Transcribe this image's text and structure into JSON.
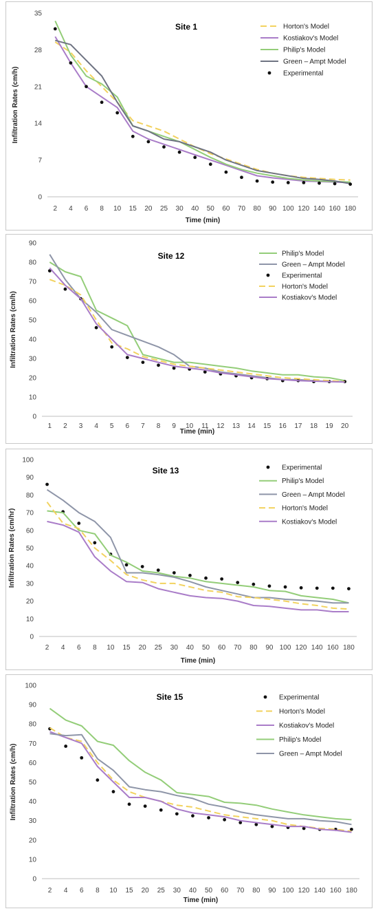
{
  "colors": {
    "horton": "#f2d25e",
    "kostiakov": "#a97cc8",
    "philip": "#93cd78",
    "green_ampt": "#6e7382",
    "experimental": "#111111",
    "green_ampt_light": "#8e95a8"
  },
  "chart_data": [
    {
      "type": "line",
      "title": "Site 1",
      "xlabel": "Time (min)",
      "ylabel": "Infiltration Rates (cm/h)",
      "categories": [
        "2",
        "4",
        "6",
        "8",
        "10",
        "15",
        "20",
        "25",
        "30",
        "40",
        "50",
        "60",
        "70",
        "80",
        "90",
        "100",
        "120",
        "140",
        "160",
        "180"
      ],
      "ylim": [
        0,
        35
      ],
      "yticks": [
        "0",
        "7",
        "14",
        "21",
        "28",
        "35"
      ],
      "grid": false,
      "legend_position": "top-right",
      "series": [
        {
          "name": "Horton's Model",
          "key": "horton",
          "style": "dashed",
          "values": [
            29.5,
            27.5,
            24,
            21,
            18,
            14.5,
            13.5,
            12.5,
            11,
            9.5,
            8.2,
            7.2,
            6.2,
            5.2,
            4.5,
            4,
            3.7,
            3.5,
            3.3,
            3.2
          ]
        },
        {
          "name": "Kostiakov's Model",
          "key": "kostiakov",
          "style": "solid",
          "values": [
            30.5,
            25.5,
            21,
            19,
            17,
            12.5,
            11,
            10,
            9,
            8,
            7,
            6,
            5,
            4,
            3.6,
            3.3,
            3,
            2.9,
            2.8,
            2.7
          ]
        },
        {
          "name": "Philip's Model",
          "key": "philip",
          "style": "solid",
          "values": [
            33.5,
            27,
            23,
            21.5,
            19,
            13.5,
            12.5,
            11.5,
            10.5,
            9,
            7.5,
            6.2,
            5.2,
            4.5,
            4,
            3.5,
            3.2,
            3,
            2.9,
            2.8
          ]
        },
        {
          "name": "Green – Ampt Model",
          "key": "green_ampt",
          "style": "solid",
          "values": [
            29.8,
            29,
            26,
            23,
            18,
            13.5,
            12.5,
            11,
            10.5,
            9.5,
            8.5,
            7,
            6,
            5,
            4.5,
            4,
            3.5,
            3.3,
            3,
            2.5
          ]
        },
        {
          "name": "Experimental",
          "key": "experimental",
          "style": "points",
          "values": [
            32,
            25.5,
            21,
            18,
            16,
            11.5,
            10.5,
            9.5,
            8.5,
            7.5,
            6.2,
            4.7,
            3.7,
            3,
            2.8,
            2.7,
            2.7,
            2.6,
            2.5,
            2.4
          ]
        }
      ]
    },
    {
      "type": "line",
      "title": "Site 12",
      "xlabel": "Time (min)",
      "ylabel": "Infiltration Rates (cm/h)",
      "categories": [
        "1",
        "2",
        "3",
        "4",
        "5",
        "6",
        "7",
        "8",
        "9",
        "10",
        "11",
        "12",
        "13",
        "14",
        "15",
        "16",
        "17",
        "18",
        "19",
        "20"
      ],
      "ylim": [
        0,
        90
      ],
      "yticks": [
        "0",
        "10",
        "20",
        "30",
        "40",
        "50",
        "60",
        "70",
        "80",
        "90"
      ],
      "grid": false,
      "legend_position": "top-right",
      "series": [
        {
          "name": "Philip's Model",
          "key": "philip",
          "style": "solid",
          "values": [
            80,
            75,
            72.5,
            55,
            51,
            47,
            32,
            30,
            28,
            28,
            27,
            26,
            25,
            23.5,
            22.5,
            21.5,
            21.5,
            20.5,
            20,
            18.5
          ]
        },
        {
          "name": "Green – Ampt Model",
          "key": "green_ampt_light",
          "style": "solid",
          "values": [
            84,
            71,
            61,
            54,
            45,
            42,
            39,
            36,
            32,
            26,
            25,
            23,
            22,
            21,
            20,
            19,
            19,
            18.5,
            18,
            18
          ]
        },
        {
          "name": "Experimental",
          "key": "experimental",
          "style": "points",
          "values": [
            75.5,
            66,
            61,
            46,
            36,
            30.5,
            28,
            26.5,
            25,
            24.5,
            23,
            22,
            21,
            20,
            19.5,
            18.5,
            18.5,
            18,
            18,
            18
          ]
        },
        {
          "name": "Horton's Model",
          "key": "horton",
          "style": "dashed",
          "values": [
            71,
            68,
            63,
            50,
            38,
            35,
            31,
            29,
            27,
            26,
            25,
            24,
            23,
            22,
            21,
            20,
            19.5,
            19,
            18.5,
            18
          ]
        },
        {
          "name": "Kostiakov's Model",
          "key": "kostiakov",
          "style": "solid",
          "values": [
            77,
            68,
            61,
            48,
            40,
            32,
            30,
            28,
            26,
            25,
            24,
            22.5,
            21.5,
            20.5,
            19.5,
            19,
            18.5,
            18.2,
            18,
            17.8
          ]
        }
      ]
    },
    {
      "type": "line",
      "title": "Site 13",
      "xlabel": "Time (min)",
      "ylabel": "Infiltration Rates (cm/hr)",
      "categories": [
        "2",
        "4",
        "6",
        "8",
        "10",
        "15",
        "20",
        "25",
        "30",
        "40",
        "50",
        "60",
        "70",
        "80",
        "90",
        "100",
        "120",
        "140",
        "160",
        "180"
      ],
      "ylim": [
        0,
        100
      ],
      "yticks": [
        "0",
        "10",
        "20",
        "30",
        "40",
        "50",
        "60",
        "70",
        "80",
        "90",
        "100"
      ],
      "grid": false,
      "legend_position": "top-right",
      "series": [
        {
          "name": "Experimental",
          "key": "experimental",
          "style": "points",
          "values": [
            86,
            70.5,
            64,
            53,
            46.5,
            40.5,
            39.5,
            37.5,
            36,
            34.5,
            33,
            32.5,
            30.5,
            29.5,
            28.5,
            28,
            27.5,
            27.3,
            27.3,
            27
          ]
        },
        {
          "name": "Philip's Model",
          "key": "philip",
          "style": "solid",
          "values": [
            71,
            70,
            60,
            58,
            46,
            42,
            37,
            36,
            34,
            33,
            31,
            30,
            29,
            28,
            26,
            25.5,
            23,
            22,
            21,
            19
          ]
        },
        {
          "name": "Green – Ampt Model",
          "key": "green_ampt_light",
          "style": "solid",
          "values": [
            83,
            77,
            70,
            65,
            56,
            36,
            36,
            35,
            33.5,
            31,
            28,
            26,
            24,
            22,
            22,
            21,
            20.5,
            20,
            19,
            19
          ]
        },
        {
          "name": "Horton's Model",
          "key": "horton",
          "style": "dashed",
          "values": [
            76,
            64,
            61,
            50,
            43,
            35,
            32,
            30,
            30,
            28,
            26,
            25,
            22.5,
            22,
            21,
            20,
            18.5,
            17.5,
            16,
            15.5
          ]
        },
        {
          "name": "Kostiakov's Model",
          "key": "kostiakov",
          "style": "solid",
          "values": [
            65,
            63,
            59,
            45,
            37,
            31,
            30.5,
            27,
            25,
            23,
            22,
            21.5,
            20,
            17.5,
            17,
            16,
            15,
            15,
            14,
            14
          ]
        }
      ]
    },
    {
      "type": "line",
      "title": "Site 15",
      "xlabel": "Time (min)",
      "ylabel": "Infiltration Rates (cm/h)",
      "categories": [
        "2",
        "4",
        "6",
        "8",
        "10",
        "15",
        "20",
        "25",
        "30",
        "40",
        "50",
        "60",
        "70",
        "80",
        "90",
        "100",
        "120",
        "140",
        "160",
        "180"
      ],
      "ylim": [
        0,
        100
      ],
      "yticks": [
        "0",
        "10",
        "20",
        "30",
        "40",
        "50",
        "60",
        "70",
        "80",
        "90",
        "100"
      ],
      "grid": false,
      "legend_position": "top-right",
      "series": [
        {
          "name": "Experimental",
          "key": "experimental",
          "style": "points",
          "values": [
            77.5,
            68.5,
            62.5,
            51,
            45,
            38.5,
            37.5,
            35.5,
            33.5,
            32.5,
            31.5,
            30.5,
            29,
            28,
            27,
            26.5,
            26,
            25.5,
            25.5,
            25.5
          ]
        },
        {
          "name": "Horton's Model",
          "key": "horton",
          "style": "dashed",
          "values": [
            78,
            73,
            71,
            60,
            51,
            45,
            42,
            40,
            38,
            37,
            35,
            33,
            32,
            31,
            30,
            28,
            27,
            26,
            25.5,
            24.5
          ]
        },
        {
          "name": "Kostiakov's Model",
          "key": "kostiakov",
          "style": "solid",
          "values": [
            76,
            73,
            70,
            58,
            50,
            42,
            42,
            40,
            36,
            34,
            33,
            32,
            30,
            29,
            28,
            27,
            27,
            25.5,
            25,
            24
          ]
        },
        {
          "name": "Philip's Model",
          "key": "philip",
          "style": "solid",
          "values": [
            88,
            82,
            79,
            71,
            69,
            61,
            55,
            51,
            44.5,
            43.5,
            42.5,
            39.5,
            39,
            38,
            36,
            34.5,
            33,
            32,
            31,
            30.5
          ]
        },
        {
          "name": "Green – Ampt Model",
          "key": "green_ampt_light",
          "style": "solid",
          "values": [
            75,
            74,
            74.5,
            62,
            56,
            47.5,
            46,
            45,
            43,
            41.5,
            38.5,
            37,
            34.5,
            33,
            32,
            31,
            31,
            30,
            29.5,
            28
          ]
        }
      ]
    }
  ]
}
